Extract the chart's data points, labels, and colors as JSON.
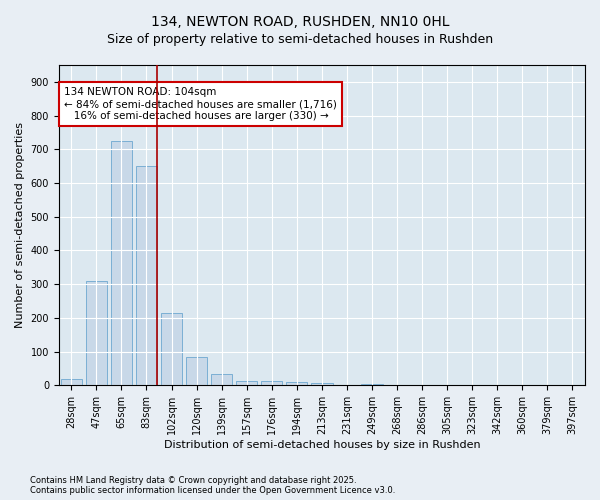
{
  "title1": "134, NEWTON ROAD, RUSHDEN, NN10 0HL",
  "title2": "Size of property relative to semi-detached houses in Rushden",
  "xlabel": "Distribution of semi-detached houses by size in Rushden",
  "ylabel": "Number of semi-detached properties",
  "categories": [
    "28sqm",
    "47sqm",
    "65sqm",
    "83sqm",
    "102sqm",
    "120sqm",
    "139sqm",
    "157sqm",
    "176sqm",
    "194sqm",
    "213sqm",
    "231sqm",
    "249sqm",
    "268sqm",
    "286sqm",
    "305sqm",
    "323sqm",
    "342sqm",
    "360sqm",
    "379sqm",
    "397sqm"
  ],
  "values": [
    20,
    310,
    725,
    650,
    215,
    85,
    35,
    12,
    12,
    10,
    8,
    0,
    5,
    0,
    0,
    0,
    0,
    0,
    0,
    0,
    0
  ],
  "bar_color": "#c8d8e8",
  "bar_edge_color": "#7bafd4",
  "vline_color": "#aa0000",
  "annotation_title": "134 NEWTON ROAD: 104sqm",
  "annotation_line1": "← 84% of semi-detached houses are smaller (1,716)",
  "annotation_line2": "   16% of semi-detached houses are larger (330) →",
  "annotation_box_color": "#cc0000",
  "ylim": [
    0,
    950
  ],
  "yticks": [
    0,
    100,
    200,
    300,
    400,
    500,
    600,
    700,
    800,
    900
  ],
  "footer1": "Contains HM Land Registry data © Crown copyright and database right 2025.",
  "footer2": "Contains public sector information licensed under the Open Government Licence v3.0.",
  "bg_color": "#e8eef4",
  "plot_bg_color": "#dce8f0",
  "grid_color": "#ffffff",
  "title1_fontsize": 10,
  "title2_fontsize": 9,
  "axis_fontsize": 8,
  "tick_fontsize": 7,
  "footer_fontsize": 6
}
